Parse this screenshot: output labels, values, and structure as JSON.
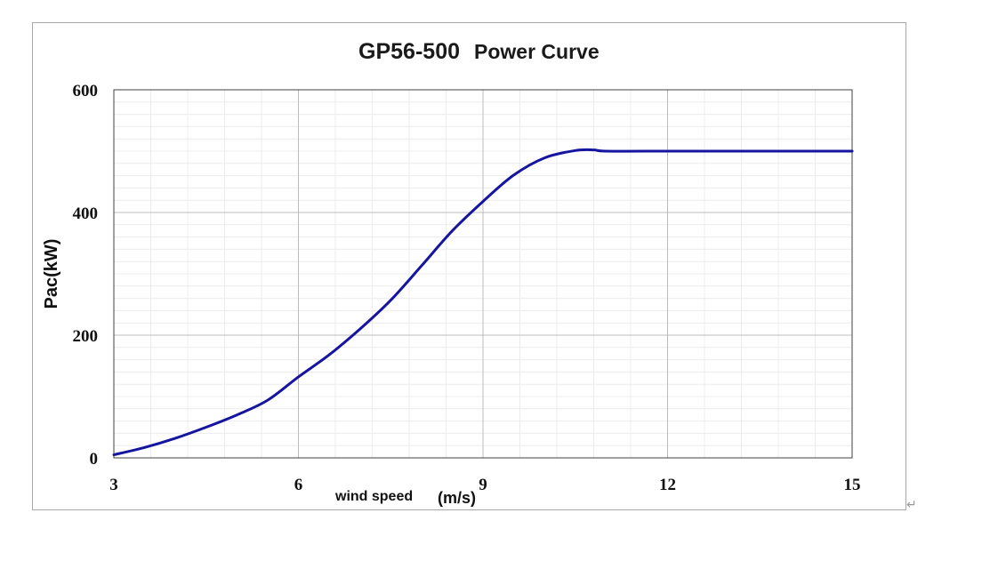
{
  "chart_data": {
    "type": "line",
    "title": "GP56-500",
    "subtitle": "Power Curve",
    "xlabel": "wind speed",
    "xlabel_unit": "(m/s)",
    "ylabel": "Pac(kW)",
    "xlim": [
      3,
      15
    ],
    "ylim": [
      0,
      600
    ],
    "x_ticks": [
      "3",
      "6",
      "9",
      "12",
      "15"
    ],
    "y_ticks": [
      "0",
      "200",
      "400",
      "600"
    ],
    "grid": true,
    "legend": "none",
    "series": [
      {
        "color": "#1515a0",
        "points": [
          [
            3.0,
            5
          ],
          [
            3.5,
            17
          ],
          [
            4.0,
            32
          ],
          [
            4.5,
            50
          ],
          [
            5.0,
            70
          ],
          [
            5.5,
            94
          ],
          [
            6.0,
            132
          ],
          [
            6.5,
            168
          ],
          [
            7.0,
            210
          ],
          [
            7.5,
            257
          ],
          [
            8.0,
            313
          ],
          [
            8.5,
            370
          ],
          [
            9.0,
            418
          ],
          [
            9.5,
            461
          ],
          [
            10.0,
            489
          ],
          [
            10.5,
            501
          ],
          [
            10.8,
            502
          ],
          [
            11.0,
            500
          ],
          [
            12.0,
            500
          ],
          [
            13.0,
            500
          ],
          [
            14.0,
            500
          ],
          [
            15.0,
            500
          ]
        ]
      }
    ]
  },
  "decor": {
    "return_mark": "↵"
  }
}
